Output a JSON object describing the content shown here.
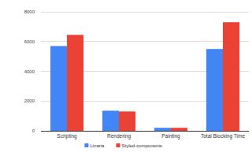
{
  "chart_data": {
    "type": "bar",
    "categories": [
      "Scripting",
      "Rendering",
      "Painting",
      "Total Blocking Time"
    ],
    "series": [
      {
        "name": "Linaria",
        "color": "#4285f4",
        "values": [
          5700,
          1350,
          200,
          5500
        ]
      },
      {
        "name": "Styled-components",
        "color": "#ea4335",
        "values": [
          6450,
          1300,
          200,
          7300
        ]
      }
    ],
    "ylim": [
      0,
      8000
    ],
    "yticks": [
      0,
      2000,
      4000,
      6000,
      8000
    ],
    "grid": true,
    "legend": "bottom"
  }
}
